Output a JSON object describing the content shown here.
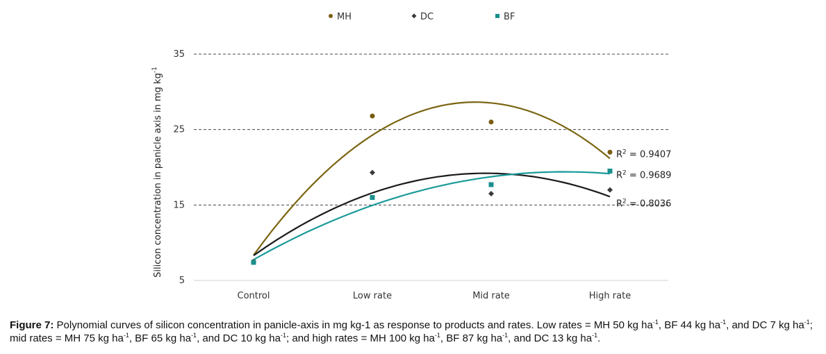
{
  "chart_data": {
    "type": "scatter",
    "categories": [
      "Control",
      "Low rate",
      "Mid rate",
      "High rate"
    ],
    "ylabel": "Silicon concentration in panicle axis in mg kg",
    "ylabel_sup": "-1",
    "yticks": [
      "35",
      "25",
      "15",
      "5"
    ],
    "ylim": [
      5,
      35
    ],
    "grid": true,
    "legend_position": "top",
    "series": [
      {
        "name": "MH",
        "marker": "circle",
        "color": "#7a5c10",
        "line_color": "#7a6511",
        "values": [
          7.5,
          26.8,
          26.0,
          22.0
        ],
        "r2": "= 0.9407"
      },
      {
        "name": "DC",
        "marker": "diamond",
        "color": "#3a3a3a",
        "line_color": "#1a1a1a",
        "values": [
          7.4,
          19.3,
          16.5,
          17.0
        ],
        "r2": "= 0.8036"
      },
      {
        "name": "BF",
        "marker": "square",
        "color": "#1a8f8f",
        "line_color": "#1a9a9a",
        "values": [
          7.4,
          16.0,
          17.7,
          19.5
        ],
        "r2": "= 0.9689"
      }
    ]
  },
  "caption": {
    "label": "Figure 7:",
    "seg1": " Polynomial curves of silicon concentration in panicle-axis in mg kg-1 as response to products and rates. Low rates = MH 50 kg ha",
    "seg2": ", BF 44 kg ha",
    "seg3": ", and DC 7 kg ha",
    "seg4": "; mid rates = MH 75 kg ha",
    "seg5": ", BF 65 kg ha",
    "seg6": ", and DC 10 kg ha",
    "seg7": "; and high rates = MH 100 kg ha",
    "seg8": ", BF 87 kg ha",
    "seg9": ", and DC 13 kg ha",
    "seg10": ".",
    "sup": "-1"
  }
}
